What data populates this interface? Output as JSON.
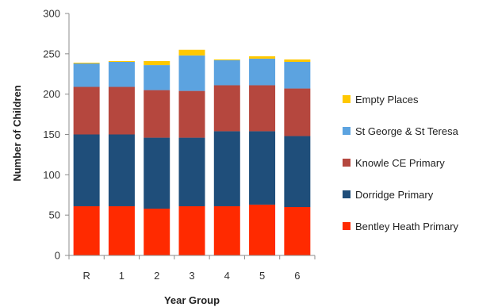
{
  "chart_data": {
    "type": "bar",
    "stacked": true,
    "categories": [
      "R",
      "1",
      "2",
      "3",
      "4",
      "5",
      "6"
    ],
    "xlabel": "Year Group",
    "ylabel": "Number of Children",
    "ylim": [
      0,
      300
    ],
    "yticks": [
      0,
      50,
      100,
      150,
      200,
      250,
      300
    ],
    "grid": false,
    "legend_position": "right",
    "series": [
      {
        "name": "Bentley Heath Primary",
        "color": "#ff2a00",
        "values": [
          61,
          61,
          58,
          61,
          61,
          63,
          60
        ]
      },
      {
        "name": "Dorridge Primary",
        "color": "#1f4e7a",
        "values": [
          89,
          89,
          88,
          85,
          93,
          91,
          88
        ]
      },
      {
        "name": "Knowle CE Primary",
        "color": "#b5473e",
        "values": [
          59,
          59,
          59,
          58,
          57,
          57,
          59
        ]
      },
      {
        "name": "St George & St Teresa",
        "color": "#5ca3e0",
        "values": [
          29,
          31,
          31,
          44,
          31,
          33,
          33
        ]
      },
      {
        "name": "Empty Places",
        "color": "#ffc800",
        "values": [
          1,
          1,
          5,
          7,
          1,
          3,
          3
        ]
      }
    ]
  }
}
